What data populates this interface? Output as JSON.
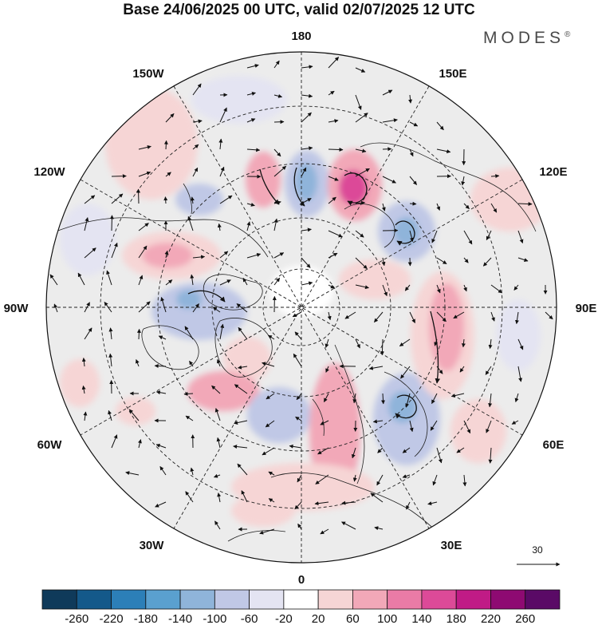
{
  "title": "Base 24/06/2025 00 UTC, valid 02/07/2025 12 UTC",
  "brand": {
    "name": "MODES",
    "mark": "®"
  },
  "longitude_labels": [
    "180",
    "150E",
    "120E",
    "90E",
    "60E",
    "30E",
    "0",
    "30W",
    "60W",
    "90W",
    "120W",
    "150W"
  ],
  "reference_vector": {
    "label": "30"
  },
  "colorbar": {
    "labels": [
      "-260",
      "-220",
      "-180",
      "-140",
      "-100",
      "-60",
      "-20",
      "20",
      "60",
      "100",
      "140",
      "180",
      "220",
      "260"
    ],
    "colors": [
      "#0f3a5a",
      "#14598a",
      "#2c7fb8",
      "#5aa0cf",
      "#8fb4da",
      "#c0c8e6",
      "#e4e4f2",
      "#ffffff",
      "#f6d5d5",
      "#f2a8b8",
      "#ea7ba6",
      "#dc4a98",
      "#c01b86",
      "#8e0a72",
      "#5a0a66"
    ]
  },
  "colors": {
    "land_background": "#ececec",
    "coast": "#222222",
    "grid": "#222222"
  }
}
